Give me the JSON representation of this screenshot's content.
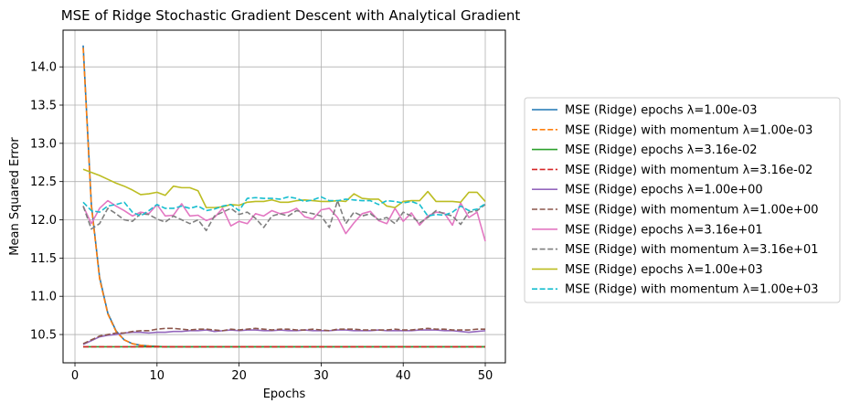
{
  "chart_data": {
    "type": "line",
    "title": "MSE of Ridge Stochastic Gradient Descent with Analytical Gradient",
    "xlabel": "Epochs",
    "ylabel": "Mean Squared Error",
    "xlim": [
      -1.45,
      52.45
    ],
    "ylim": [
      10.13,
      14.48
    ],
    "xticks": [
      0,
      10,
      20,
      30,
      40,
      50
    ],
    "yticks": [
      10.5,
      11.0,
      11.5,
      12.0,
      12.5,
      13.0,
      13.5,
      14.0
    ],
    "ytick_labels": [
      "10.5",
      "11.0",
      "11.5",
      "12.0",
      "12.5",
      "13.0",
      "13.5",
      "14.0"
    ],
    "grid": true,
    "legend_position": "outside-right",
    "series": [
      {
        "name": "MSE (Ridge) epochs λ=1.00e-03",
        "color": "#1f77b4",
        "dash": "solid",
        "values": [
          14.28,
          12.2,
          11.25,
          10.78,
          10.55,
          10.43,
          10.38,
          10.36,
          10.35,
          10.345,
          10.34,
          10.34,
          10.34,
          10.34,
          10.34,
          10.34,
          10.34,
          10.34,
          10.34,
          10.34,
          10.34,
          10.34,
          10.34,
          10.34,
          10.34,
          10.34,
          10.34,
          10.34,
          10.34,
          10.34,
          10.34,
          10.34,
          10.34,
          10.34,
          10.34,
          10.34,
          10.34,
          10.34,
          10.34,
          10.34,
          10.34,
          10.34,
          10.34,
          10.34,
          10.34,
          10.34,
          10.34,
          10.34,
          10.34,
          10.34
        ]
      },
      {
        "name": "MSE (Ridge) with momentum λ=1.00e-03",
        "color": "#ff7f0e",
        "dash": "dashed",
        "values": [
          14.25,
          12.18,
          11.23,
          10.77,
          10.54,
          10.43,
          10.38,
          10.36,
          10.35,
          10.345,
          10.34,
          10.34,
          10.34,
          10.34,
          10.34,
          10.34,
          10.34,
          10.34,
          10.34,
          10.34,
          10.34,
          10.34,
          10.34,
          10.34,
          10.34,
          10.34,
          10.34,
          10.34,
          10.34,
          10.34,
          10.34,
          10.34,
          10.34,
          10.34,
          10.34,
          10.34,
          10.34,
          10.34,
          10.34,
          10.34,
          10.34,
          10.34,
          10.34,
          10.34,
          10.34,
          10.34,
          10.34,
          10.34,
          10.34,
          10.34
        ]
      },
      {
        "name": "MSE (Ridge) epochs λ=3.16e-02",
        "color": "#2ca02c",
        "dash": "solid",
        "values": [
          10.34,
          10.34,
          10.34,
          10.34,
          10.34,
          10.34,
          10.34,
          10.34,
          10.34,
          10.34,
          10.34,
          10.34,
          10.34,
          10.34,
          10.34,
          10.34,
          10.34,
          10.34,
          10.34,
          10.34,
          10.34,
          10.34,
          10.34,
          10.34,
          10.34,
          10.34,
          10.34,
          10.34,
          10.34,
          10.34,
          10.34,
          10.34,
          10.34,
          10.34,
          10.34,
          10.34,
          10.34,
          10.34,
          10.34,
          10.34,
          10.34,
          10.34,
          10.34,
          10.34,
          10.34,
          10.34,
          10.34,
          10.34,
          10.34,
          10.34
        ]
      },
      {
        "name": "MSE (Ridge) with momentum λ=3.16e-02",
        "color": "#d62728",
        "dash": "dashed",
        "values": [
          10.34,
          10.34,
          10.34,
          10.34,
          10.34,
          10.34,
          10.34,
          10.34,
          10.34,
          10.34,
          10.34,
          10.34,
          10.34,
          10.34,
          10.34,
          10.34,
          10.34,
          10.34,
          10.34,
          10.34,
          10.34,
          10.34,
          10.34,
          10.34,
          10.34,
          10.34,
          10.34,
          10.34,
          10.34,
          10.34,
          10.34,
          10.34,
          10.34,
          10.34,
          10.34,
          10.34,
          10.34,
          10.34,
          10.34,
          10.34,
          10.34,
          10.34,
          10.34,
          10.34,
          10.34,
          10.34,
          10.34,
          10.34,
          10.34,
          10.34
        ]
      },
      {
        "name": "MSE (Ridge) epochs λ=1.00e+00",
        "color": "#9467bd",
        "dash": "solid",
        "values": [
          10.37,
          10.42,
          10.47,
          10.49,
          10.5,
          10.52,
          10.53,
          10.53,
          10.52,
          10.53,
          10.53,
          10.54,
          10.54,
          10.55,
          10.55,
          10.56,
          10.54,
          10.55,
          10.56,
          10.55,
          10.56,
          10.56,
          10.55,
          10.55,
          10.56,
          10.55,
          10.55,
          10.56,
          10.55,
          10.55,
          10.55,
          10.56,
          10.56,
          10.55,
          10.55,
          10.55,
          10.56,
          10.55,
          10.55,
          10.55,
          10.55,
          10.56,
          10.56,
          10.56,
          10.55,
          10.55,
          10.54,
          10.53,
          10.54,
          10.55
        ]
      },
      {
        "name": "MSE (Ridge) with momentum λ=1.00e+00",
        "color": "#8c564b",
        "dash": "dashed",
        "values": [
          10.38,
          10.43,
          10.48,
          10.5,
          10.52,
          10.52,
          10.54,
          10.55,
          10.55,
          10.57,
          10.58,
          10.58,
          10.57,
          10.56,
          10.57,
          10.57,
          10.56,
          10.55,
          10.57,
          10.56,
          10.57,
          10.58,
          10.57,
          10.56,
          10.57,
          10.57,
          10.56,
          10.56,
          10.57,
          10.56,
          10.55,
          10.57,
          10.57,
          10.57,
          10.56,
          10.56,
          10.56,
          10.56,
          10.57,
          10.56,
          10.56,
          10.57,
          10.58,
          10.57,
          10.57,
          10.56,
          10.56,
          10.56,
          10.57,
          10.57
        ]
      },
      {
        "name": "MSE (Ridge) epochs λ=3.16e+01",
        "color": "#e377c2",
        "dash": "solid",
        "values": [
          12.18,
          11.95,
          12.15,
          12.25,
          12.18,
          12.12,
          12.05,
          12.1,
          12.08,
          12.2,
          12.05,
          12.06,
          12.21,
          12.05,
          12.06,
          11.99,
          12.03,
          12.15,
          11.92,
          11.98,
          11.95,
          12.08,
          12.05,
          12.12,
          12.08,
          12.1,
          12.15,
          12.04,
          12.01,
          12.13,
          12.15,
          12.03,
          11.82,
          11.96,
          12.08,
          12.11,
          11.99,
          11.95,
          12.15,
          11.98,
          12.09,
          11.93,
          12.05,
          12.1,
          12.09,
          11.93,
          12.22,
          12.03,
          12.1,
          11.72
        ]
      },
      {
        "name": "MSE (Ridge) with momentum λ=3.16e+01",
        "color": "#7f7f7f",
        "dash": "dashed",
        "values": [
          12.18,
          11.88,
          11.95,
          12.15,
          12.08,
          12.0,
          11.98,
          12.08,
          12.07,
          12.01,
          11.97,
          12.05,
          12.0,
          11.95,
          12.0,
          11.86,
          12.05,
          12.1,
          12.15,
          12.07,
          12.1,
          12.02,
          11.9,
          12.05,
          12.08,
          12.05,
          12.12,
          12.1,
          12.08,
          12.05,
          11.9,
          12.25,
          11.95,
          12.1,
          12.05,
          12.08,
          12.0,
          12.03,
          11.95,
          12.1,
          12.05,
          11.96,
          12.03,
          12.12,
          12.08,
          12.05,
          11.94,
          12.1,
          12.12,
          12.2
        ]
      },
      {
        "name": "MSE (Ridge) epochs λ=1.00e+03",
        "color": "#bcbd22",
        "dash": "solid",
        "values": [
          12.66,
          12.62,
          12.58,
          12.53,
          12.48,
          12.44,
          12.39,
          12.33,
          12.34,
          12.36,
          12.32,
          12.44,
          12.42,
          12.42,
          12.38,
          12.16,
          12.16,
          12.17,
          12.2,
          12.19,
          12.23,
          12.24,
          12.24,
          12.26,
          12.23,
          12.23,
          12.25,
          12.26,
          12.25,
          12.24,
          12.24,
          12.25,
          12.24,
          12.34,
          12.28,
          12.27,
          12.27,
          12.18,
          12.16,
          12.24,
          12.25,
          12.25,
          12.37,
          12.24,
          12.24,
          12.24,
          12.23,
          12.36,
          12.36,
          12.24
        ]
      },
      {
        "name": "MSE (Ridge) with momentum λ=1.00e+03",
        "color": "#17becf",
        "dash": "dashed",
        "values": [
          12.23,
          12.12,
          12.1,
          12.18,
          12.2,
          12.23,
          12.1,
          12.05,
          12.12,
          12.2,
          12.15,
          12.15,
          12.18,
          12.15,
          12.18,
          12.12,
          12.14,
          12.18,
          12.2,
          12.12,
          12.28,
          12.29,
          12.28,
          12.28,
          12.27,
          12.3,
          12.28,
          12.24,
          12.26,
          12.3,
          12.25,
          12.25,
          12.27,
          12.26,
          12.25,
          12.25,
          12.2,
          12.25,
          12.24,
          12.22,
          12.24,
          12.2,
          12.05,
          12.07,
          12.06,
          12.1,
          12.18,
          12.12,
          12.14,
          12.21
        ]
      }
    ]
  }
}
